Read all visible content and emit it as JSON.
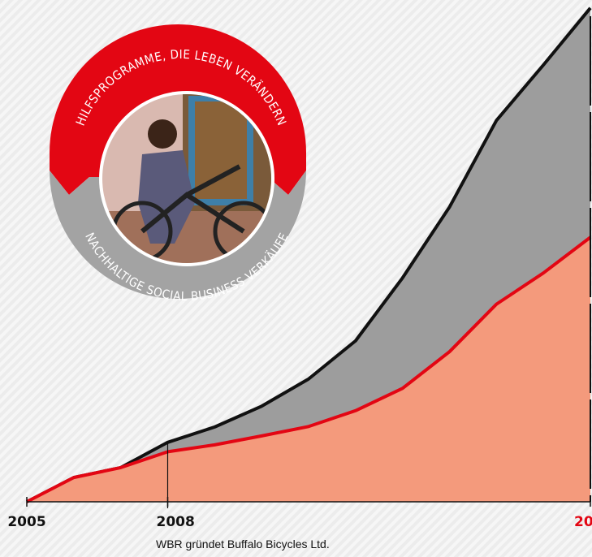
{
  "chart_data": {
    "type": "area",
    "categories": [
      "2005",
      null,
      null,
      "2008",
      null,
      null,
      null,
      null,
      null,
      null,
      null,
      null,
      "20"
    ],
    "series": [
      {
        "color": "#9d9d9d",
        "line_color": "#111111",
        "values": [
          0,
          4.9,
          6.9,
          12,
          15.1,
          19.3,
          24.8,
          32.5,
          45.2,
          59.5,
          77.0,
          88.2,
          99.7
        ]
      },
      {
        "color": "#f49a7c",
        "line_color": "#e30613",
        "values": [
          0,
          4.9,
          6.9,
          10.1,
          11.5,
          13.3,
          15.2,
          18.4,
          22.9,
          30.3,
          39.9,
          46.2,
          53.4
        ]
      }
    ],
    "ylim": [
      0,
      100
    ],
    "annotation": "WBR gründet Buffalo Bicycles Ltd.",
    "badge": {
      "top_text": "HILFSPROGRAMME, DIE LEBEN VERÄNDERN",
      "bottom_text": "NACHHALTIGE SOCIAL BUSINESS VERKÄUFE"
    }
  }
}
